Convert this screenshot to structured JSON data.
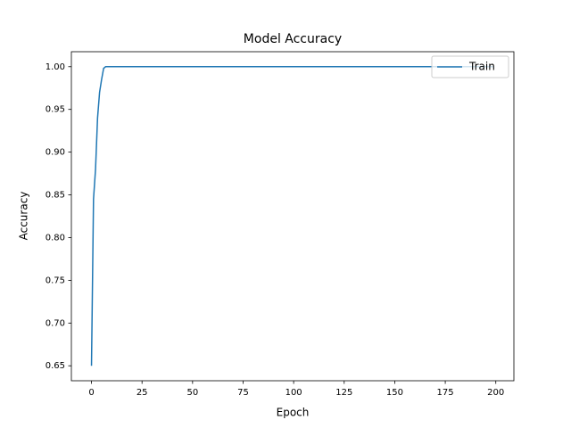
{
  "chart_data": {
    "type": "line",
    "title": "Model Accuracy",
    "xlabel": "Epoch",
    "ylabel": "Accuracy",
    "x": [
      0,
      1,
      2,
      3,
      4,
      5,
      6,
      7,
      8,
      9,
      10,
      11,
      12,
      13,
      14,
      15,
      16,
      17,
      18,
      19,
      20,
      21,
      22,
      23,
      24,
      25,
      26,
      27,
      28,
      29,
      30,
      31,
      32,
      33,
      34,
      35,
      36,
      37,
      38,
      39,
      40,
      41,
      42,
      43,
      44,
      45,
      46,
      47,
      48,
      49,
      50,
      51,
      52,
      53,
      54,
      55,
      56,
      57,
      58,
      59,
      60,
      61,
      62,
      63,
      64,
      65,
      66,
      67,
      68,
      69,
      70,
      71,
      72,
      73,
      74,
      75,
      76,
      77,
      78,
      79,
      80,
      81,
      82,
      83,
      84,
      85,
      86,
      87,
      88,
      89,
      90,
      91,
      92,
      93,
      94,
      95,
      96,
      97,
      98,
      99,
      100,
      101,
      102,
      103,
      104,
      105,
      106,
      107,
      108,
      109,
      110,
      111,
      112,
      113,
      114,
      115,
      116,
      117,
      118,
      119,
      120,
      121,
      122,
      123,
      124,
      125,
      126,
      127,
      128,
      129,
      130,
      131,
      132,
      133,
      134,
      135,
      136,
      137,
      138,
      139,
      140,
      141,
      142,
      143,
      144,
      145,
      146,
      147,
      148,
      149,
      150,
      151,
      152,
      153,
      154,
      155,
      156,
      157,
      158,
      159,
      160,
      161,
      162,
      163,
      164,
      165,
      166,
      167,
      168,
      169,
      170,
      171,
      172,
      173,
      174,
      175,
      176,
      177,
      178,
      179,
      180,
      181,
      182,
      183,
      184,
      185,
      186,
      187,
      188,
      189,
      190,
      191,
      192,
      193,
      194,
      195,
      196,
      197,
      198,
      199
    ],
    "series": [
      {
        "name": "Train",
        "color": "#1f77b4",
        "values": [
          0.65,
          0.845,
          0.88,
          0.94,
          0.97,
          0.985,
          0.998,
          1,
          1,
          1,
          1,
          1,
          1,
          1,
          1,
          1,
          1,
          1,
          1,
          1,
          1,
          1,
          1,
          1,
          1,
          1,
          1,
          1,
          1,
          1,
          1,
          1,
          1,
          1,
          1,
          1,
          1,
          1,
          1,
          1,
          1,
          1,
          1,
          1,
          1,
          1,
          1,
          1,
          1,
          1,
          1,
          1,
          1,
          1,
          1,
          1,
          1,
          1,
          1,
          1,
          1,
          1,
          1,
          1,
          1,
          1,
          1,
          1,
          1,
          1,
          1,
          1,
          1,
          1,
          1,
          1,
          1,
          1,
          1,
          1,
          1,
          1,
          1,
          1,
          1,
          1,
          1,
          1,
          1,
          1,
          1,
          1,
          1,
          1,
          1,
          1,
          1,
          1,
          1,
          1,
          1,
          1,
          1,
          1,
          1,
          1,
          1,
          1,
          1,
          1,
          1,
          1,
          1,
          1,
          1,
          1,
          1,
          1,
          1,
          1,
          1,
          1,
          1,
          1,
          1,
          1,
          1,
          1,
          1,
          1,
          1,
          1,
          1,
          1,
          1,
          1,
          1,
          1,
          1,
          1,
          1,
          1,
          1,
          1,
          1,
          1,
          1,
          1,
          1,
          1,
          1,
          1,
          1,
          1,
          1,
          1,
          1,
          1,
          1,
          1,
          1,
          1,
          1,
          1,
          1,
          1,
          1,
          1,
          1,
          1,
          1,
          1,
          1,
          1,
          1,
          1,
          1,
          1,
          1,
          1,
          1,
          1,
          1,
          1,
          1,
          1,
          1,
          1,
          1,
          1,
          1,
          1,
          1,
          1,
          1,
          1,
          1,
          1,
          1,
          1
        ]
      }
    ],
    "xlim": [
      -9.95,
      208.95
    ],
    "xticks": [
      0,
      25,
      50,
      75,
      100,
      125,
      150,
      175,
      200
    ],
    "ylim": [
      0.6325,
      1.0175
    ],
    "yticks": [
      {
        "value": 0.65,
        "label": "0.65"
      },
      {
        "value": 0.7,
        "label": "0.70"
      },
      {
        "value": 0.75,
        "label": "0.75"
      },
      {
        "value": 0.8,
        "label": "0.80"
      },
      {
        "value": 0.85,
        "label": "0.85"
      },
      {
        "value": 0.9,
        "label": "0.90"
      },
      {
        "value": 0.95,
        "label": "0.95"
      },
      {
        "value": 1,
        "label": "1.00"
      }
    ],
    "legend": "upper right",
    "grid": false
  }
}
